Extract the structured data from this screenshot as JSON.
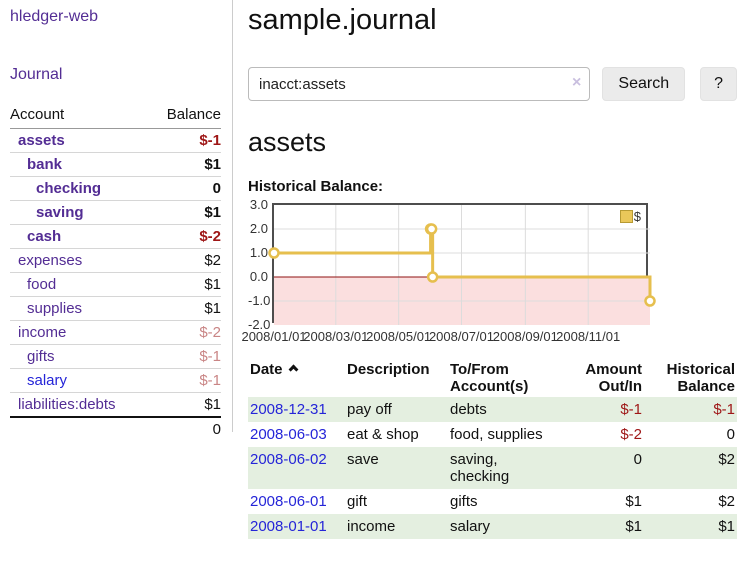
{
  "sidebar": {
    "brand": "hledger-web",
    "nav_journal": "Journal",
    "accounts": {
      "header_account": "Account",
      "header_balance": "Balance",
      "rows": [
        {
          "name": "assets",
          "depth": 1,
          "bold": true,
          "link_color": "purple",
          "balance": "$-1",
          "balance_color": "neg"
        },
        {
          "name": "bank",
          "depth": 2,
          "bold": true,
          "link_color": "purple",
          "balance": "$1",
          "balance_color": "plain"
        },
        {
          "name": "checking",
          "depth": 3,
          "bold": true,
          "link_color": "purple",
          "balance": "0",
          "balance_color": "plain"
        },
        {
          "name": "saving",
          "depth": 3,
          "bold": true,
          "link_color": "purple",
          "balance": "$1",
          "balance_color": "plain"
        },
        {
          "name": "cash",
          "depth": 2,
          "bold": true,
          "link_color": "purple",
          "balance": "$-2",
          "balance_color": "neg"
        },
        {
          "name": "expenses",
          "depth": 1,
          "bold": false,
          "link_color": "purple",
          "balance": "$2",
          "balance_color": "plain"
        },
        {
          "name": "food",
          "depth": 2,
          "bold": false,
          "link_color": "purple",
          "balance": "$1",
          "balance_color": "plain"
        },
        {
          "name": "supplies",
          "depth": 2,
          "bold": false,
          "link_color": "purple",
          "balance": "$1",
          "balance_color": "plain"
        },
        {
          "name": "income",
          "depth": 1,
          "bold": false,
          "link_color": "purple",
          "balance": "$-2",
          "balance_color": "soft"
        },
        {
          "name": "gifts",
          "depth": 2,
          "bold": false,
          "link_color": "purple",
          "balance": "$-1",
          "balance_color": "soft"
        },
        {
          "name": "salary",
          "depth": 2,
          "bold": false,
          "link_color": "blue",
          "balance": "$-1",
          "balance_color": "soft"
        },
        {
          "name": "liabilities:debts",
          "depth": 1,
          "bold": false,
          "link_color": "purple",
          "balance": "$1",
          "balance_color": "plain"
        }
      ],
      "total": "0"
    }
  },
  "main": {
    "title": "sample.journal",
    "search": {
      "value": "inacct:assets",
      "clear_icon": "×",
      "button_label": "Search",
      "help_label": "?"
    },
    "heading": "assets",
    "register": {
      "headers": {
        "date": "Date",
        "description": "Description",
        "tofrom": [
          "To/From",
          "Account(s)"
        ],
        "amount": [
          "Amount",
          "Out/In"
        ],
        "historical": [
          "Historical",
          "Balance"
        ]
      },
      "rows": [
        {
          "date": "2008-12-31",
          "description": "pay off",
          "accounts": "debts",
          "amount": "$-1",
          "amount_negative": true,
          "balance": "$-1",
          "balance_negative": true
        },
        {
          "date": "2008-06-03",
          "description": "eat & shop",
          "accounts": "food, supplies",
          "amount": "$-2",
          "amount_negative": true,
          "balance": "0",
          "balance_negative": false
        },
        {
          "date": "2008-06-02",
          "description": "save",
          "accounts": "saving, checking",
          "amount": "0",
          "amount_negative": false,
          "balance": "$2",
          "balance_negative": false
        },
        {
          "date": "2008-06-01",
          "description": "gift",
          "accounts": "gifts",
          "amount": "$1",
          "amount_negative": false,
          "balance": "$2",
          "balance_negative": false
        },
        {
          "date": "2008-01-01",
          "description": "income",
          "accounts": "salary",
          "amount": "$1",
          "amount_negative": false,
          "balance": "$1",
          "balance_negative": false
        }
      ]
    }
  },
  "chart_data": {
    "type": "line",
    "title": "Historical Balance:",
    "step": "after",
    "series": [
      {
        "name": "$",
        "points": [
          [
            "2008-01-01",
            1
          ],
          [
            "2008-06-01",
            2
          ],
          [
            "2008-06-02",
            2
          ],
          [
            "2008-06-03",
            0
          ],
          [
            "2008-12-31",
            -1
          ]
        ]
      }
    ],
    "x_range": [
      "2008-01-01",
      "2008-12-31"
    ],
    "ylim": [
      -2,
      3
    ],
    "y_ticks": [
      "3.0",
      "2.0",
      "1.0",
      "0.0",
      "-1.0",
      "-2.0"
    ],
    "x_ticks": [
      "2008/01/01",
      "2008/03/01",
      "2008/05/01",
      "2008/07/01",
      "2008/09/01",
      "2008/11/01"
    ],
    "legend": "$",
    "legend_position": "top-right",
    "grid": true,
    "negative_region_shaded": true
  },
  "colors": {
    "purple_link": "#532d94",
    "blue_link": "#2525d8",
    "negative_strong": "#9e1616",
    "negative_soft": "#c98585",
    "row_highlight": "#e4efe0",
    "chart_line": "#e6bf4e",
    "chart_marker_fill": "#ffffff",
    "chart_negative_bg": "#fbdfdf",
    "chart_zero_line": "#8f1010",
    "chart_grid": "#dcdcdc",
    "chart_border": "#4d4d4d",
    "button_bg": "#ebebeb",
    "clear_icon": "#c9bfdf"
  }
}
